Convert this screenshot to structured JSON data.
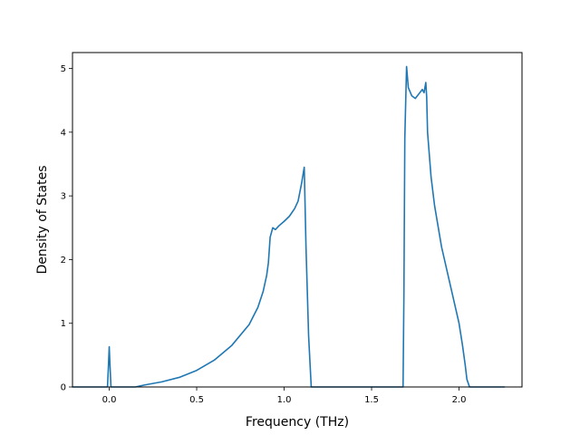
{
  "chart_data": {
    "type": "line",
    "title": "",
    "xlabel": "Frequency (THz)",
    "ylabel": "Density of States",
    "xlim": [
      -0.21,
      2.36
    ],
    "ylim": [
      0,
      5.25
    ],
    "xticks": [
      0.0,
      0.5,
      1.0,
      1.5,
      2.0
    ],
    "xtick_labels": [
      "0.0",
      "0.5",
      "1.0",
      "1.5",
      "2.0"
    ],
    "yticks": [
      0,
      1,
      2,
      3,
      4,
      5
    ],
    "ytick_labels": [
      "0",
      "1",
      "2",
      "3",
      "4",
      "5"
    ],
    "grid": false,
    "line_color": "#1f77b4",
    "series": [
      {
        "points": [
          [
            -0.21,
            0.0
          ],
          [
            -0.01,
            0.0
          ],
          [
            -0.005,
            0.3
          ],
          [
            0.0,
            0.63
          ],
          [
            0.005,
            0.3
          ],
          [
            0.01,
            0.0
          ],
          [
            0.15,
            0.0
          ],
          [
            0.2,
            0.03
          ],
          [
            0.3,
            0.08
          ],
          [
            0.4,
            0.15
          ],
          [
            0.5,
            0.26
          ],
          [
            0.6,
            0.42
          ],
          [
            0.7,
            0.65
          ],
          [
            0.8,
            0.98
          ],
          [
            0.85,
            1.25
          ],
          [
            0.88,
            1.5
          ],
          [
            0.9,
            1.75
          ],
          [
            0.91,
            1.95
          ],
          [
            0.92,
            2.35
          ],
          [
            0.935,
            2.5
          ],
          [
            0.95,
            2.47
          ],
          [
            0.97,
            2.53
          ],
          [
            1.0,
            2.6
          ],
          [
            1.03,
            2.68
          ],
          [
            1.06,
            2.8
          ],
          [
            1.08,
            2.92
          ],
          [
            1.1,
            3.2
          ],
          [
            1.115,
            3.45
          ],
          [
            1.125,
            2.2
          ],
          [
            1.14,
            0.8
          ],
          [
            1.155,
            0.0
          ],
          [
            1.68,
            0.0
          ],
          [
            1.685,
            1.5
          ],
          [
            1.69,
            3.9
          ],
          [
            1.7,
            5.03
          ],
          [
            1.71,
            4.7
          ],
          [
            1.73,
            4.57
          ],
          [
            1.75,
            4.53
          ],
          [
            1.77,
            4.6
          ],
          [
            1.79,
            4.67
          ],
          [
            1.8,
            4.62
          ],
          [
            1.81,
            4.78
          ],
          [
            1.815,
            4.55
          ],
          [
            1.82,
            4.0
          ],
          [
            1.84,
            3.3
          ],
          [
            1.86,
            2.85
          ],
          [
            1.9,
            2.2
          ],
          [
            1.95,
            1.6
          ],
          [
            2.0,
            1.0
          ],
          [
            2.02,
            0.65
          ],
          [
            2.035,
            0.35
          ],
          [
            2.045,
            0.12
          ],
          [
            2.06,
            0.0
          ],
          [
            2.26,
            0.0
          ]
        ]
      }
    ]
  }
}
